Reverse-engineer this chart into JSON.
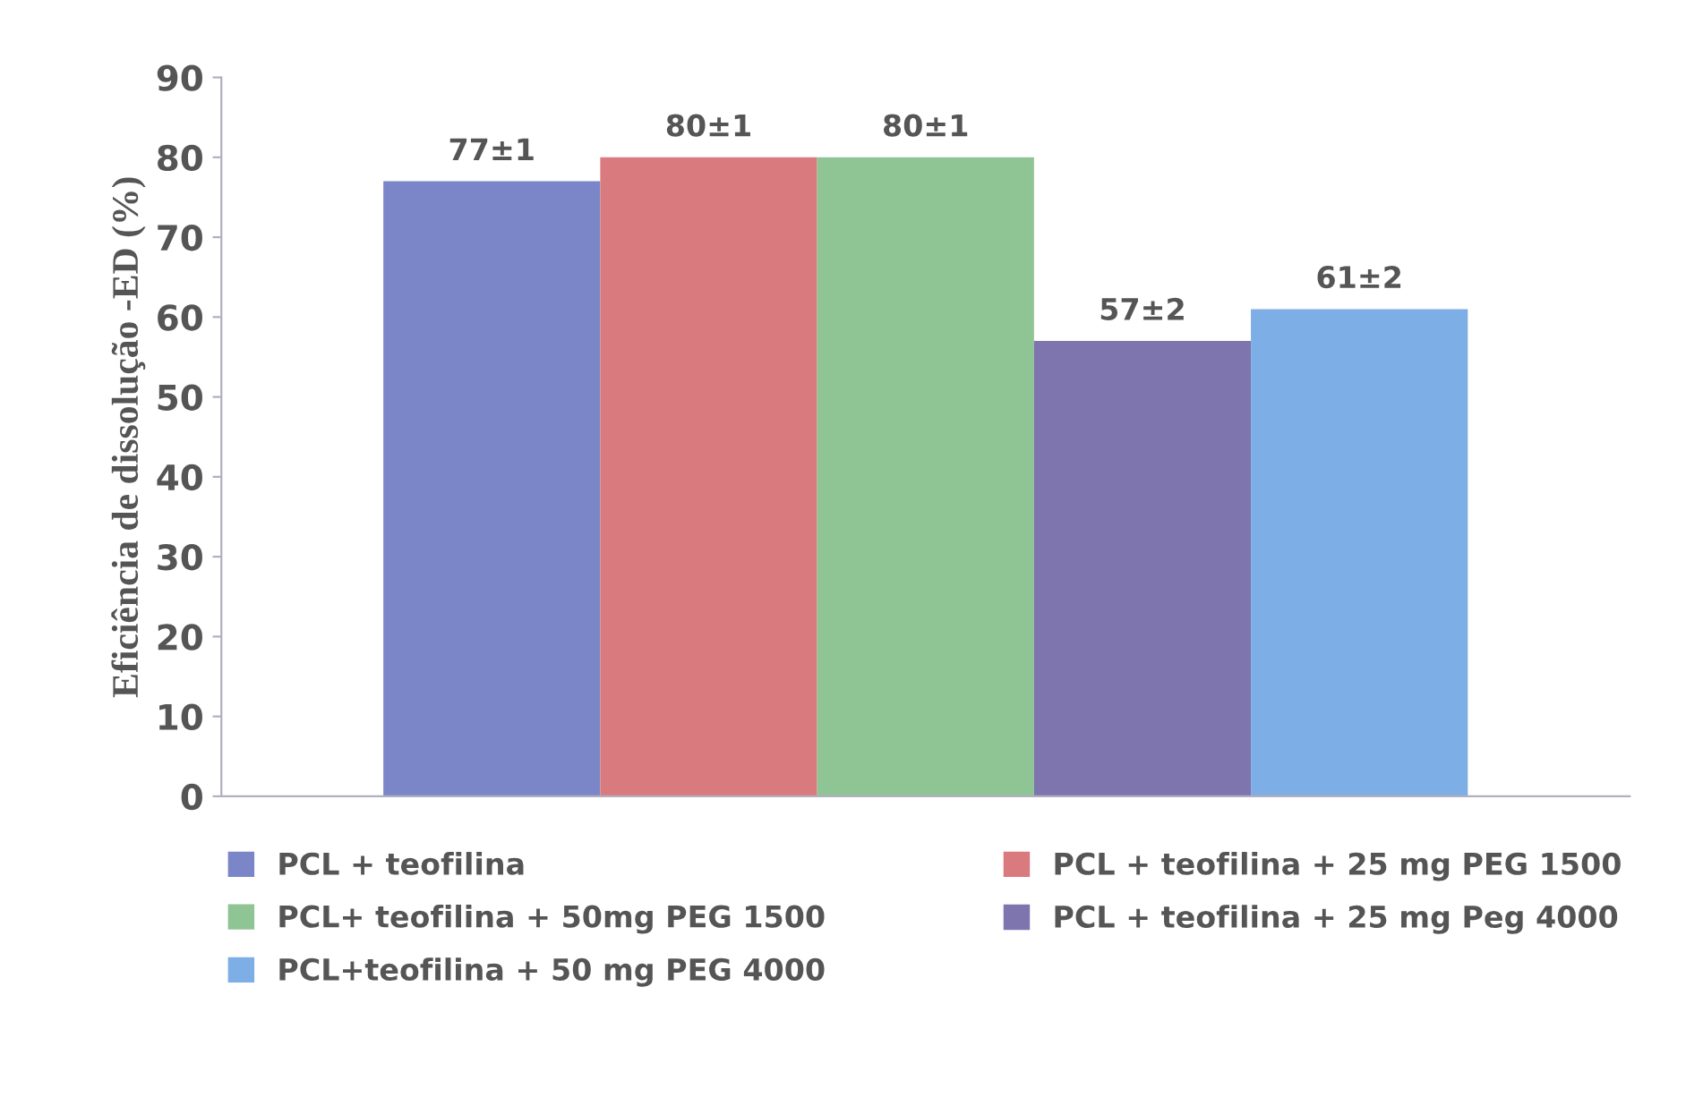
{
  "chart_data": {
    "type": "bar",
    "ylabel": "Eficiência de dissolução -ED (%)",
    "categories": [
      null
    ],
    "series": [
      {
        "name": "PCL + teofilina",
        "color": "#7b86c8",
        "values": [
          77
        ],
        "value_labels": [
          "77±1"
        ]
      },
      {
        "name": "PCL + teofilina + 25 mg PEG 1500",
        "color": "#d97a7e",
        "values": [
          80
        ],
        "value_labels": [
          "80±1"
        ]
      },
      {
        "name": "PCL+ teofilina + 50mg PEG 1500",
        "color": "#8fc495",
        "values": [
          80
        ],
        "value_labels": [
          "80±1"
        ]
      },
      {
        "name": "PCL + teofilina + 25 mg Peg 4000",
        "color": "#7e74ae",
        "values": [
          57
        ],
        "value_labels": [
          "57±2"
        ]
      },
      {
        "name": "PCL+teofilina + 50 mg PEG 4000",
        "color": "#7eaee6",
        "values": [
          61
        ],
        "value_labels": [
          "61±2"
        ]
      }
    ],
    "ylim": [
      0,
      90
    ],
    "yticks": [
      0,
      10,
      20,
      30,
      40,
      50,
      60,
      70,
      80,
      90
    ],
    "grid": false,
    "legend": "bottom"
  }
}
